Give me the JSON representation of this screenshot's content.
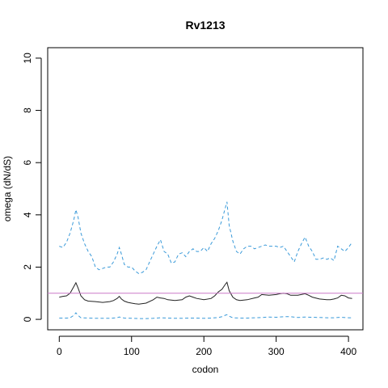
{
  "chart_data": {
    "type": "line",
    "title": "Rv1213",
    "xlabel": "codon",
    "ylabel": "omega (dN/dS)",
    "xlim": [
      -16,
      420
    ],
    "ylim": [
      -0.4,
      10.4
    ],
    "xticks": [
      0,
      100,
      200,
      300,
      400
    ],
    "xtick_labels": [
      "0",
      "100",
      "200",
      "300",
      "400"
    ],
    "yticks": [
      0,
      2,
      4,
      6,
      8,
      10
    ],
    "ytick_labels": [
      "0",
      "2",
      "4",
      "6",
      "8",
      "10"
    ],
    "grid": false,
    "reference_line": {
      "y": 1,
      "color": "#cc79c8"
    },
    "series": [
      {
        "role": "upper",
        "style": "dashed",
        "color": "#3a9ad9",
        "x": [
          0,
          5,
          10,
          15,
          20,
          23,
          26,
          30,
          35,
          40,
          45,
          50,
          55,
          60,
          65,
          70,
          75,
          80,
          83,
          86,
          90,
          95,
          100,
          105,
          110,
          115,
          120,
          125,
          130,
          135,
          140,
          145,
          150,
          155,
          160,
          165,
          170,
          175,
          180,
          185,
          190,
          195,
          200,
          205,
          210,
          215,
          220,
          225,
          230,
          232,
          235,
          240,
          245,
          250,
          255,
          260,
          265,
          270,
          275,
          280,
          285,
          290,
          295,
          300,
          305,
          310,
          315,
          320,
          325,
          330,
          335,
          340,
          345,
          350,
          355,
          360,
          365,
          370,
          375,
          380,
          385,
          390,
          395,
          400,
          405
        ],
        "y": [
          2.8,
          2.75,
          2.95,
          3.3,
          3.8,
          4.2,
          3.9,
          3.3,
          2.9,
          2.6,
          2.4,
          2.0,
          1.9,
          1.95,
          2.0,
          2.0,
          2.2,
          2.5,
          2.75,
          2.5,
          2.1,
          2.0,
          2.0,
          1.85,
          1.75,
          1.8,
          1.9,
          2.2,
          2.5,
          2.8,
          3.05,
          2.6,
          2.5,
          2.15,
          2.2,
          2.5,
          2.55,
          2.4,
          2.6,
          2.7,
          2.6,
          2.6,
          2.75,
          2.6,
          2.9,
          3.1,
          3.4,
          3.8,
          4.3,
          4.5,
          3.6,
          3.0,
          2.6,
          2.5,
          2.7,
          2.8,
          2.8,
          2.7,
          2.75,
          2.8,
          2.85,
          2.8,
          2.8,
          2.8,
          2.75,
          2.8,
          2.6,
          2.4,
          2.2,
          2.6,
          2.9,
          3.15,
          2.8,
          2.6,
          2.3,
          2.3,
          2.35,
          2.3,
          2.35,
          2.25,
          2.8,
          2.7,
          2.6,
          2.75,
          2.95
        ]
      },
      {
        "role": "estimate",
        "style": "solid",
        "color": "#222222",
        "x": [
          0,
          5,
          10,
          15,
          20,
          23,
          26,
          30,
          35,
          40,
          50,
          60,
          70,
          75,
          80,
          83,
          86,
          90,
          95,
          100,
          105,
          110,
          120,
          130,
          135,
          140,
          145,
          150,
          160,
          170,
          175,
          180,
          185,
          190,
          200,
          210,
          215,
          220,
          225,
          230,
          232,
          235,
          240,
          245,
          250,
          260,
          270,
          275,
          280,
          290,
          300,
          305,
          310,
          315,
          320,
          330,
          340,
          345,
          350,
          360,
          370,
          375,
          380,
          385,
          390,
          395,
          400,
          405
        ],
        "y": [
          0.85,
          0.88,
          0.9,
          1.0,
          1.25,
          1.4,
          1.2,
          0.9,
          0.75,
          0.7,
          0.68,
          0.65,
          0.68,
          0.72,
          0.8,
          0.88,
          0.78,
          0.7,
          0.65,
          0.62,
          0.6,
          0.58,
          0.62,
          0.75,
          0.85,
          0.82,
          0.8,
          0.75,
          0.72,
          0.75,
          0.85,
          0.9,
          0.85,
          0.8,
          0.75,
          0.8,
          0.9,
          1.05,
          1.15,
          1.35,
          1.42,
          1.1,
          0.85,
          0.75,
          0.72,
          0.75,
          0.82,
          0.85,
          0.95,
          0.92,
          0.95,
          0.98,
          1.0,
          0.98,
          0.92,
          0.92,
          0.98,
          0.92,
          0.85,
          0.78,
          0.75,
          0.75,
          0.78,
          0.82,
          0.92,
          0.9,
          0.82,
          0.8
        ]
      },
      {
        "role": "lower",
        "style": "dashed",
        "color": "#3a9ad9",
        "x": [
          0,
          10,
          15,
          20,
          23,
          26,
          30,
          40,
          50,
          60,
          70,
          80,
          83,
          86,
          90,
          100,
          110,
          120,
          130,
          140,
          150,
          160,
          170,
          180,
          190,
          200,
          210,
          220,
          225,
          230,
          232,
          235,
          240,
          250,
          260,
          270,
          280,
          290,
          300,
          310,
          320,
          330,
          340,
          350,
          360,
          370,
          380,
          390,
          400,
          405
        ],
        "y": [
          0.05,
          0.05,
          0.06,
          0.15,
          0.25,
          0.15,
          0.06,
          0.05,
          0.04,
          0.04,
          0.04,
          0.06,
          0.09,
          0.07,
          0.05,
          0.04,
          0.03,
          0.03,
          0.04,
          0.06,
          0.05,
          0.04,
          0.04,
          0.05,
          0.05,
          0.04,
          0.05,
          0.07,
          0.1,
          0.16,
          0.18,
          0.12,
          0.06,
          0.05,
          0.05,
          0.06,
          0.07,
          0.09,
          0.08,
          0.1,
          0.1,
          0.07,
          0.09,
          0.08,
          0.07,
          0.06,
          0.06,
          0.08,
          0.06,
          0.06
        ]
      }
    ]
  }
}
